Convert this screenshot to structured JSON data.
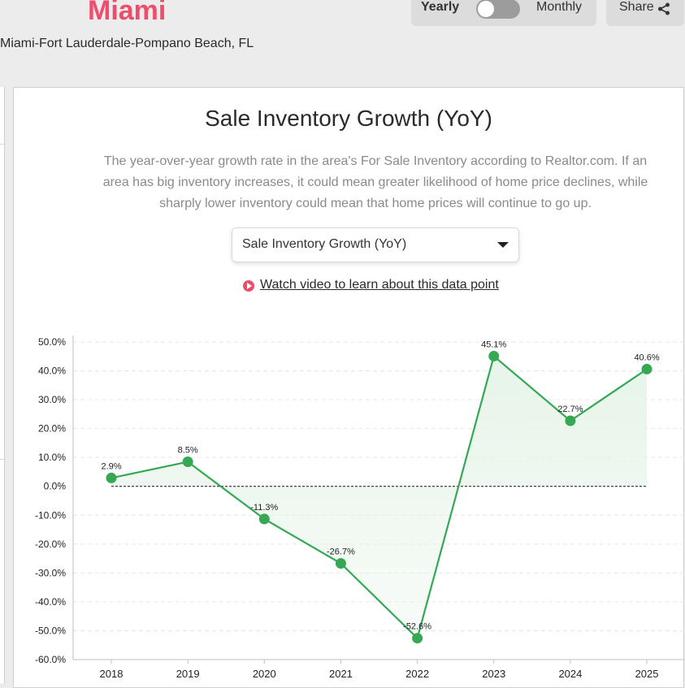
{
  "header": {
    "city": "Miami",
    "metro": "Miami-Fort Lauderdale-Pompano Beach, FL",
    "toggle": {
      "left_label": "Yearly",
      "right_label": "Monthly",
      "selected": "Yearly"
    },
    "share_label": "Share"
  },
  "card": {
    "title": "Sale Inventory Growth (YoY)",
    "description": "The year-over-year growth rate in the area's For Sale Inventory according to Realtor.com. If an area has big inventory increases, it could mean greater likelihood of home price declines, while sharply lower inventory could mean that home prices will continue to go up.",
    "dropdown_value": "Sale Inventory Growth (YoY)",
    "video_link": "Watch video to learn about this data point"
  },
  "colors": {
    "brand": "#ee4e6b",
    "line": "#34a853",
    "fill": "#e6f4e8"
  },
  "chart_data": {
    "type": "area",
    "categories": [
      "2018",
      "2019",
      "2020",
      "2021",
      "2022",
      "2023",
      "2024",
      "2025"
    ],
    "values": [
      2.9,
      8.5,
      -11.3,
      -26.7,
      -52.6,
      45.1,
      22.7,
      40.6
    ],
    "data_labels": [
      "2.9%",
      "8.5%",
      "-11.3%",
      "-26.7%",
      "-52.6%",
      "45.1%",
      "22.7%",
      "40.6%"
    ],
    "yticks": [
      "50.0%",
      "40.0%",
      "30.0%",
      "20.0%",
      "10.0%",
      "0.0%",
      "-10.0%",
      "-20.0%",
      "-30.0%",
      "-40.0%",
      "-50.0%",
      "-60.0%"
    ],
    "ylim": [
      -60,
      50
    ],
    "grid": true,
    "zero_line": true
  }
}
